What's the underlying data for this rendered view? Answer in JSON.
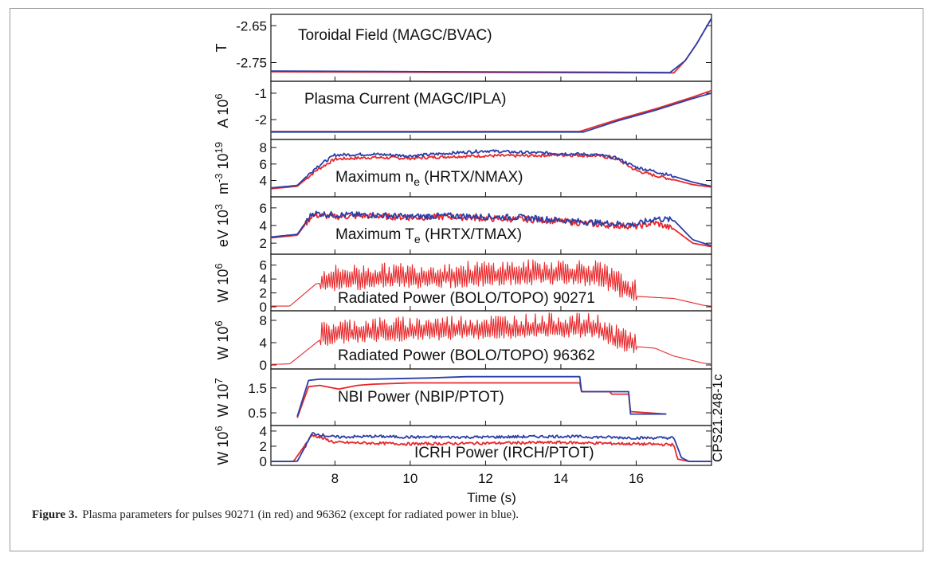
{
  "caption": {
    "label": "Figure 3.",
    "text": "Plasma parameters for pulses 90271 (in red) and 96362 (except for radiated power in blue)."
  },
  "side_label": "CPS21.248-1c",
  "colors": {
    "pulse_90271": "#e8282b",
    "pulse_96362": "#2b3fa8"
  },
  "chart_data": {
    "type": "line",
    "xlabel": "Time (s)",
    "xlim": [
      6.3,
      18.0
    ],
    "xticks": [
      8,
      10,
      12,
      14,
      16
    ],
    "panels": [
      {
        "id": "toroidal",
        "title": "Toroidal Field (MAGC/BVAC)",
        "ylabel": "T",
        "ylim": [
          -2.79,
          -2.63
        ],
        "yticks": [
          -2.65,
          -2.75
        ],
        "ytick_labels": [
          "-2.65",
          "-2.75"
        ],
        "series": [
          {
            "x": [
              6.3,
              17.0,
              17.3,
              17.6,
              18.0
            ],
            "y": [
              -2.775,
              -2.778,
              -2.745,
              -2.7,
              -2.63
            ]
          },
          {
            "x": [
              6.3,
              16.9,
              17.3,
              17.6,
              18.0
            ],
            "y": [
              -2.773,
              -2.777,
              -2.745,
              -2.7,
              -2.63
            ]
          }
        ]
      },
      {
        "id": "current",
        "title": "Plasma Current (MAGC/IPLA)",
        "ylabel": "A 10^6",
        "ylim": [
          -2.6,
          -0.7
        ],
        "yticks": [
          -1,
          -2
        ],
        "ytick_labels": [
          "-1",
          "-2"
        ],
        "series": [
          {
            "x": [
              6.3,
              14.5,
              15.5,
              16.5,
              17.5,
              18.0
            ],
            "y": [
              -2.45,
              -2.45,
              -2.0,
              -1.6,
              -1.15,
              -0.9
            ]
          },
          {
            "x": [
              6.3,
              14.6,
              15.5,
              16.5,
              17.5,
              18.0
            ],
            "y": [
              -2.47,
              -2.47,
              -2.05,
              -1.65,
              -1.2,
              -1.0
            ]
          }
        ]
      },
      {
        "id": "density",
        "title": "Maximum n_e (HRTX/NMAX)",
        "ylabel": "m^-3 10^19",
        "ylim": [
          2.5,
          8.5
        ],
        "yticks": [
          4,
          6,
          8
        ],
        "ytick_labels": [
          "4",
          "6",
          "8"
        ],
        "series": [
          {
            "x": [
              6.3,
              7.0,
              7.5,
              8.0,
              9.0,
              10.0,
              11.0,
              12.0,
              13.0,
              14.0,
              15.0,
              15.5,
              16.0,
              16.5,
              17.0,
              17.5,
              18.0
            ],
            "y": [
              3.0,
              3.3,
              5.2,
              6.6,
              6.8,
              6.7,
              6.9,
              7.0,
              7.0,
              7.1,
              7.0,
              6.6,
              5.2,
              4.6,
              4.1,
              3.5,
              3.2
            ]
          },
          {
            "x": [
              6.3,
              7.0,
              7.5,
              8.0,
              9.0,
              10.0,
              11.0,
              12.0,
              13.0,
              14.0,
              15.0,
              15.5,
              16.0,
              16.5,
              17.0,
              17.5,
              18.0
            ],
            "y": [
              3.1,
              3.4,
              5.6,
              7.1,
              7.2,
              7.0,
              7.3,
              7.6,
              7.4,
              7.3,
              7.1,
              6.7,
              5.6,
              5.1,
              4.5,
              3.8,
              3.3
            ]
          }
        ]
      },
      {
        "id": "temperature",
        "title": "Maximum T_e (HRTX/TMAX)",
        "ylabel": "eV 10^3",
        "ylim": [
          1.2,
          6.8
        ],
        "yticks": [
          2,
          4,
          6
        ],
        "ytick_labels": [
          "2",
          "4",
          "6"
        ],
        "series": [
          {
            "x": [
              6.3,
              7.0,
              7.4,
              8.0,
              9.0,
              10.0,
              11.0,
              12.0,
              13.0,
              14.0,
              15.0,
              16.0,
              16.5,
              17.0,
              17.5,
              18.0
            ],
            "y": [
              2.6,
              2.9,
              5.2,
              5.0,
              5.1,
              4.9,
              5.0,
              4.8,
              4.7,
              4.5,
              4.1,
              3.9,
              4.3,
              3.6,
              2.0,
              1.6
            ]
          },
          {
            "x": [
              6.3,
              7.0,
              7.4,
              8.0,
              9.0,
              10.0,
              11.0,
              12.0,
              13.0,
              14.0,
              15.0,
              16.0,
              16.5,
              17.0,
              17.5,
              18.0
            ],
            "y": [
              2.7,
              3.0,
              5.4,
              5.2,
              5.2,
              5.0,
              5.1,
              5.0,
              4.9,
              4.6,
              4.3,
              4.1,
              4.8,
              4.6,
              2.4,
              1.7
            ]
          }
        ]
      },
      {
        "id": "radiated1",
        "title": "Radiated Power (BOLO/TOPO) 90271",
        "ylabel": "W 10^6",
        "ylim": [
          0,
          7
        ],
        "yticks": [
          0,
          2,
          4,
          6
        ],
        "ytick_labels": [
          "0",
          "2",
          "4",
          "6"
        ],
        "series": [
          {
            "x": [
              6.3,
              6.8,
              7.5,
              8.0,
              9.0,
              10.0,
              11.0,
              12.0,
              13.0,
              14.0,
              15.0,
              15.4,
              16.0,
              17.0,
              17.8,
              18.0
            ],
            "y": [
              0.1,
              0.1,
              3.3,
              3.7,
              3.9,
              4.0,
              4.1,
              4.3,
              4.4,
              4.6,
              4.3,
              3.2,
              1.5,
              1.2,
              0.2,
              0.1
            ]
          }
        ]
      },
      {
        "id": "radiated2",
        "title": "Radiated Power (BOLO/TOPO) 96362",
        "ylabel": "W 10^6",
        "ylim": [
          0,
          9
        ],
        "yticks": [
          0,
          4,
          8
        ],
        "ytick_labels": [
          "0",
          "4",
          "8"
        ],
        "series": [
          {
            "x": [
              6.3,
              6.8,
              7.6,
              8.0,
              9.0,
              10.0,
              11.0,
              12.0,
              13.0,
              14.0,
              15.0,
              15.4,
              16.0,
              16.5,
              17.0,
              17.8,
              18.0
            ],
            "y": [
              0.1,
              0.2,
              4.5,
              5.2,
              5.5,
              5.6,
              5.9,
              6.0,
              6.1,
              6.3,
              6.1,
              4.2,
              3.3,
              3.0,
              1.6,
              0.3,
              0.2
            ]
          }
        ]
      },
      {
        "id": "nbi",
        "title": "NBI Power (NBIP/PTOT)",
        "ylabel": "W 10^7",
        "ylim": [
          0.15,
          2.1
        ],
        "yticks": [
          0.5,
          1.5
        ],
        "ytick_labels": [
          "0.5",
          "1.5"
        ],
        "series": [
          {
            "x": [
              7.0,
              7.3,
              7.6,
              8.1,
              8.6,
              9.0,
              10.0,
              14.5,
              14.55,
              15.3,
              15.35,
              15.8,
              15.85,
              16.8
            ],
            "y": [
              0.3,
              1.55,
              1.6,
              1.45,
              1.6,
              1.65,
              1.7,
              1.7,
              1.35,
              1.35,
              1.25,
              1.25,
              0.55,
              0.45
            ]
          },
          {
            "x": [
              7.0,
              7.3,
              7.6,
              9.0,
              10.5,
              11.5,
              14.5,
              14.55,
              15.8,
              15.85,
              16.8
            ],
            "y": [
              0.35,
              1.8,
              1.85,
              1.85,
              1.9,
              1.95,
              1.95,
              1.35,
              1.35,
              0.45,
              0.45
            ]
          }
        ]
      },
      {
        "id": "icrh",
        "title": "ICRH Power (IRCH/PTOT)",
        "ylabel": "W 10^6",
        "ylim": [
          0,
          4.2
        ],
        "yticks": [
          0,
          2,
          4
        ],
        "ytick_labels": [
          "0",
          "2",
          "4"
        ],
        "series": [
          {
            "x": [
              6.3,
              6.9,
              7.4,
              8.0,
              9.0,
              10.0,
              12.0,
              14.0,
              16.0,
              17.0,
              17.1,
              17.4,
              18.0
            ],
            "y": [
              0.0,
              0.0,
              3.5,
              2.5,
              2.4,
              2.3,
              2.4,
              2.5,
              2.3,
              2.2,
              0.3,
              0.0,
              0.0
            ]
          },
          {
            "x": [
              6.3,
              7.0,
              7.4,
              8.0,
              9.0,
              10.0,
              12.0,
              14.0,
              16.0,
              17.0,
              17.2,
              17.4,
              18.0
            ],
            "y": [
              0.0,
              0.0,
              3.7,
              3.2,
              3.3,
              3.2,
              3.2,
              3.3,
              3.1,
              3.1,
              0.5,
              0.0,
              0.0
            ]
          }
        ]
      }
    ]
  }
}
